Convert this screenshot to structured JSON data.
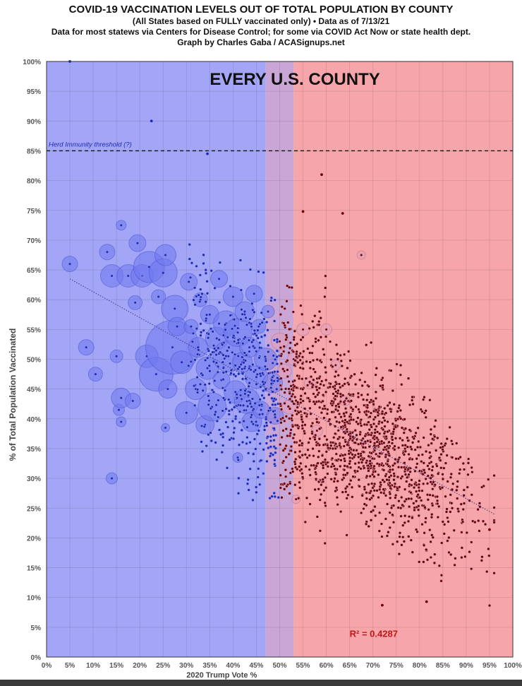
{
  "titles": {
    "line1": "COVID-19 VACCINATION LEVELS OUT OF TOTAL POPULATION BY COUNTY",
    "line2": "(All States based on FULLY vaccinated only)  •  Data as of 7/13/21",
    "line3": "Data for most statews via Centers for Disease Control; for some via COVID Act Now or state health dept.",
    "line4": "Graph by Charles Gaba / ACASignups.net"
  },
  "chart_data": {
    "type": "scatter",
    "title": "EVERY U.S. COUNTY",
    "xlabel": "2020 Trump Vote %",
    "ylabel": "% of Total Population Vaccinated",
    "xlim": [
      0,
      100
    ],
    "ylim": [
      0,
      100
    ],
    "x_ticks": [
      "0%",
      "5%",
      "10%",
      "15%",
      "20%",
      "25%",
      "30%",
      "35%",
      "40%",
      "45%",
      "50%",
      "55%",
      "60%",
      "65%",
      "70%",
      "75%",
      "80%",
      "85%",
      "90%",
      "95%",
      "100%"
    ],
    "y_ticks": [
      "0%",
      "5%",
      "10%",
      "15%",
      "20%",
      "25%",
      "30%",
      "35%",
      "40%",
      "45%",
      "50%",
      "55%",
      "60%",
      "65%",
      "70%",
      "75%",
      "80%",
      "85%",
      "90%",
      "95%",
      "100%"
    ],
    "grid": true,
    "background_regions": [
      {
        "from": 0,
        "to": 47,
        "color": "#a3a6f6"
      },
      {
        "from": 47,
        "to": 53,
        "color": "#c9a6d6"
      },
      {
        "from": 53,
        "to": 100,
        "color": "#f6a6aa"
      }
    ],
    "reference_line": {
      "y": 85,
      "label": "Herd Immunity threshold (?)",
      "style": "dashed"
    },
    "trendline": {
      "x": [
        5,
        96
      ],
      "y": [
        63.5,
        24
      ],
      "style": "dotted"
    },
    "annotation": "R² = 0.4287",
    "colors": {
      "dem": "#1f2bb5",
      "rep": "#6b0008",
      "bubble_dem": "#6f78ee",
      "bubble_rep": "#e4a0b8"
    },
    "bubble_points": [
      {
        "x": 5,
        "y": 66,
        "r": 11
      },
      {
        "x": 8.5,
        "y": 52,
        "r": 11
      },
      {
        "x": 10.5,
        "y": 47.5,
        "r": 10
      },
      {
        "x": 13,
        "y": 68,
        "r": 11
      },
      {
        "x": 14,
        "y": 64,
        "r": 16
      },
      {
        "x": 14,
        "y": 30,
        "r": 8
      },
      {
        "x": 15,
        "y": 50.5,
        "r": 9
      },
      {
        "x": 15.5,
        "y": 41.5,
        "r": 8
      },
      {
        "x": 16,
        "y": 43.5,
        "r": 14
      },
      {
        "x": 16,
        "y": 72.5,
        "r": 7
      },
      {
        "x": 17.5,
        "y": 64,
        "r": 16
      },
      {
        "x": 18.5,
        "y": 43,
        "r": 11
      },
      {
        "x": 19,
        "y": 59.5,
        "r": 10
      },
      {
        "x": 19.5,
        "y": 69.5,
        "r": 12
      },
      {
        "x": 20.5,
        "y": 64,
        "r": 16
      },
      {
        "x": 21.5,
        "y": 50.5,
        "r": 16
      },
      {
        "x": 22,
        "y": 65.5,
        "r": 22
      },
      {
        "x": 23.5,
        "y": 47.5,
        "r": 24
      },
      {
        "x": 24,
        "y": 60.5,
        "r": 10
      },
      {
        "x": 25,
        "y": 64.5,
        "r": 20
      },
      {
        "x": 25.5,
        "y": 67.5,
        "r": 15
      },
      {
        "x": 26,
        "y": 45,
        "r": 13
      },
      {
        "x": 27,
        "y": 52,
        "r": 38
      },
      {
        "x": 27.5,
        "y": 58.5,
        "r": 19
      },
      {
        "x": 28,
        "y": 55.5,
        "r": 13
      },
      {
        "x": 29,
        "y": 49.5,
        "r": 16
      },
      {
        "x": 30,
        "y": 41,
        "r": 16
      },
      {
        "x": 30.5,
        "y": 63,
        "r": 12
      },
      {
        "x": 31,
        "y": 55.5,
        "r": 10
      },
      {
        "x": 32,
        "y": 45,
        "r": 15
      },
      {
        "x": 32.5,
        "y": 52,
        "r": 14
      },
      {
        "x": 33,
        "y": 60,
        "r": 10
      },
      {
        "x": 34,
        "y": 39,
        "r": 13
      },
      {
        "x": 34.5,
        "y": 48.5,
        "r": 16
      },
      {
        "x": 35,
        "y": 57.5,
        "r": 13
      },
      {
        "x": 35.5,
        "y": 42,
        "r": 20
      },
      {
        "x": 36.5,
        "y": 53.5,
        "r": 16
      },
      {
        "x": 37,
        "y": 63.5,
        "r": 12
      },
      {
        "x": 37.5,
        "y": 46.5,
        "r": 12
      },
      {
        "x": 38.5,
        "y": 56,
        "r": 18
      },
      {
        "x": 39,
        "y": 50.5,
        "r": 22
      },
      {
        "x": 40,
        "y": 60.5,
        "r": 14
      },
      {
        "x": 40.5,
        "y": 44.5,
        "r": 16
      },
      {
        "x": 41,
        "y": 54.5,
        "r": 20
      },
      {
        "x": 42,
        "y": 49.5,
        "r": 14
      },
      {
        "x": 42.5,
        "y": 58,
        "r": 14
      },
      {
        "x": 43,
        "y": 43,
        "r": 18
      },
      {
        "x": 43.5,
        "y": 52,
        "r": 14
      },
      {
        "x": 44,
        "y": 39.5,
        "r": 14
      },
      {
        "x": 44.5,
        "y": 61,
        "r": 12
      },
      {
        "x": 45,
        "y": 47,
        "r": 16
      },
      {
        "x": 45.5,
        "y": 55.5,
        "r": 10
      },
      {
        "x": 46,
        "y": 41.5,
        "r": 12
      },
      {
        "x": 47,
        "y": 50,
        "r": 16
      },
      {
        "x": 47.5,
        "y": 58,
        "r": 9
      },
      {
        "x": 48.5,
        "y": 46,
        "r": 14
      },
      {
        "x": 49,
        "y": 40.5,
        "r": 12
      },
      {
        "x": 50,
        "y": 53,
        "r": 12
      },
      {
        "x": 51,
        "y": 48,
        "r": 10
      },
      {
        "x": 52,
        "y": 42,
        "r": 10
      },
      {
        "x": 53,
        "y": 50,
        "r": 9
      },
      {
        "x": 55,
        "y": 55,
        "r": 9
      },
      {
        "x": 56.5,
        "y": 46,
        "r": 8
      },
      {
        "x": 58,
        "y": 38,
        "r": 8
      },
      {
        "x": 60,
        "y": 55,
        "r": 8
      },
      {
        "x": 62,
        "y": 49,
        "r": 7
      },
      {
        "x": 64,
        "y": 43,
        "r": 7
      },
      {
        "x": 67.5,
        "y": 67.5,
        "r": 6
      },
      {
        "x": 53.5,
        "y": 26.5,
        "r": 6
      },
      {
        "x": 41,
        "y": 33.5,
        "r": 7
      },
      {
        "x": 25.5,
        "y": 38.5,
        "r": 6
      },
      {
        "x": 16,
        "y": 39.5,
        "r": 7
      }
    ]
  }
}
